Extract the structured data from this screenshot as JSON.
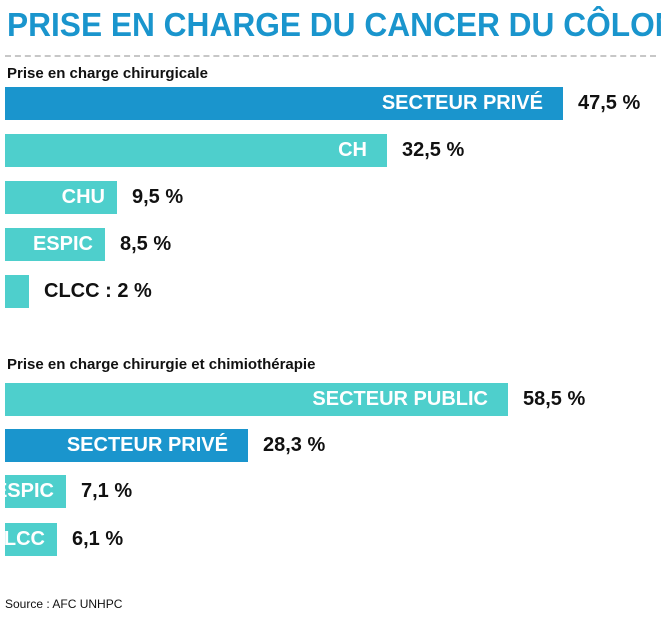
{
  "title": "PRISE EN CHARGE DU CANCER DU CÔLON",
  "source": "Source : AFC UNHPC",
  "colors": {
    "title": "#1a95cd",
    "dark_bar": "#1a95cd",
    "light_bar": "#4ecfcc"
  },
  "chart_data": [
    {
      "type": "bar",
      "orientation": "horizontal",
      "title": "Prise en charge chirurgicale",
      "unit": "%",
      "bars": [
        {
          "category": "SECTEUR PRIVÉ",
          "value": 47.5,
          "value_label": "47,5 %",
          "color": "dark"
        },
        {
          "category": "CH",
          "value": 32.5,
          "value_label": "32,5 %",
          "color": "light"
        },
        {
          "category": "CHU",
          "value": 9.5,
          "value_label": "9,5 %",
          "color": "light"
        },
        {
          "category": "ESPIC",
          "value": 8.5,
          "value_label": "8,5 %",
          "color": "light"
        },
        {
          "category": "",
          "value": 2,
          "value_label": "CLCC : 2 %",
          "color": "light"
        }
      ]
    },
    {
      "type": "bar",
      "orientation": "horizontal",
      "title": "Prise en charge chirurgie et chimiothérapie",
      "unit": "%",
      "bars": [
        {
          "category": "SECTEUR PUBLIC",
          "value": 58.5,
          "value_label": "58,5 %",
          "color": "light"
        },
        {
          "category": "SECTEUR PRIVÉ",
          "value": 28.3,
          "value_label": "28,3 %",
          "color": "dark"
        },
        {
          "category": "ESPIC",
          "value": 7.1,
          "value_label": "7,1 %",
          "color": "light"
        },
        {
          "category": "CLCC",
          "value": 6.1,
          "value_label": "6,1 %",
          "color": "light"
        }
      ]
    }
  ]
}
